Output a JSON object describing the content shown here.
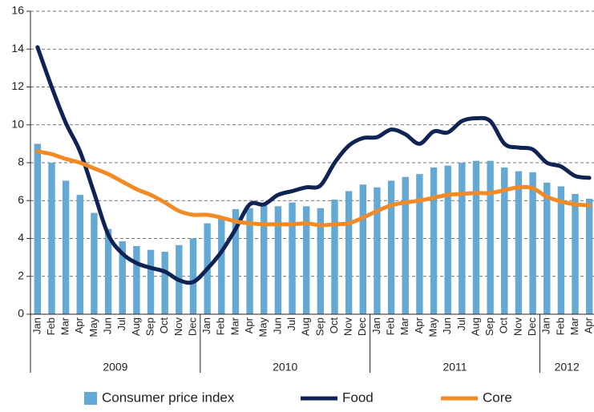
{
  "chart_data": {
    "type": "combo",
    "categories": [
      "Jan",
      "Feb",
      "Mar",
      "Apr",
      "May",
      "Jun",
      "Jul",
      "Aug",
      "Sep",
      "Oct",
      "Nov",
      "Dec",
      "Jan",
      "Feb",
      "Mar",
      "Apr",
      "May",
      "Jun",
      "Jul",
      "Aug",
      "Sep",
      "Oct",
      "Nov",
      "Dec",
      "Jan",
      "Feb",
      "Mar",
      "Apr",
      "May",
      "Jun",
      "Jul",
      "Aug",
      "Sep",
      "Oct",
      "Nov",
      "Dec",
      "Jan",
      "Feb",
      "Mar",
      "Apr"
    ],
    "years": [
      "2009",
      "2010",
      "2011",
      "2012"
    ],
    "series": [
      {
        "name": "Consumer price index",
        "type": "bar",
        "color": "#63a9d4",
        "values": [
          9.0,
          8.0,
          7.05,
          6.3,
          5.35,
          4.5,
          3.85,
          3.6,
          3.4,
          3.3,
          3.65,
          4.0,
          4.8,
          5.1,
          5.55,
          5.6,
          5.8,
          5.7,
          5.9,
          5.7,
          5.6,
          6.05,
          6.5,
          6.85,
          6.7,
          7.05,
          7.25,
          7.4,
          7.75,
          7.85,
          8.0,
          8.1,
          8.1,
          7.75,
          7.55,
          7.5,
          6.95,
          6.75,
          6.35,
          6.1
        ]
      },
      {
        "name": "Food",
        "type": "line",
        "color": "#0f2354",
        "values": [
          14.1,
          12.0,
          10.1,
          8.6,
          6.4,
          4.2,
          3.2,
          2.7,
          2.45,
          2.25,
          1.8,
          1.7,
          2.4,
          3.3,
          4.5,
          5.8,
          5.8,
          6.3,
          6.5,
          6.7,
          6.8,
          8.0,
          8.9,
          9.3,
          9.35,
          9.75,
          9.5,
          9.0,
          9.65,
          9.6,
          10.2,
          10.35,
          10.2,
          9.0,
          8.8,
          8.7,
          8.0,
          7.8,
          7.3,
          7.2
        ]
      },
      {
        "name": "Core",
        "type": "line",
        "color": "#f28a25",
        "values": [
          8.6,
          8.45,
          8.2,
          8.0,
          7.7,
          7.4,
          7.0,
          6.6,
          6.3,
          5.9,
          5.45,
          5.25,
          5.25,
          5.1,
          4.9,
          4.8,
          4.75,
          4.75,
          4.75,
          4.8,
          4.7,
          4.75,
          4.8,
          5.1,
          5.45,
          5.75,
          5.9,
          6.0,
          6.15,
          6.3,
          6.35,
          6.4,
          6.4,
          6.55,
          6.7,
          6.65,
          6.2,
          5.95,
          5.8,
          5.75
        ]
      }
    ],
    "ylim": [
      0,
      16
    ],
    "yticks": [
      0,
      2,
      4,
      6,
      8,
      10,
      12,
      14,
      16
    ],
    "grid": true,
    "legend": "bottom"
  }
}
